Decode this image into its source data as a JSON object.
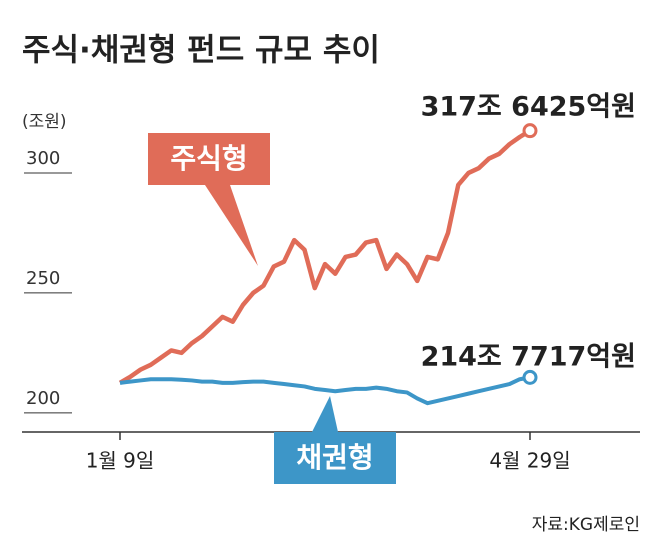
{
  "chart_data": {
    "type": "line",
    "title": "주식·채권형 펀드 규모 추이",
    "y_unit": "(조원)",
    "source": "자료:KG제로인",
    "categories": [
      "1월 9일",
      null,
      null,
      null,
      null,
      null,
      null,
      null,
      null,
      null,
      null,
      null,
      null,
      null,
      null,
      null,
      null,
      null,
      null,
      null,
      null,
      null,
      null,
      null,
      null,
      null,
      null,
      null,
      null,
      null,
      null,
      null,
      null,
      null,
      null,
      null,
      null,
      null,
      null,
      null,
      "4월 29일"
    ],
    "series": [
      {
        "name": "주식형",
        "color": "#e06c58",
        "end_label": "317조 6425억원",
        "values": [
          212.5,
          215,
          218,
          220,
          223,
          226,
          225,
          229,
          232,
          236,
          240,
          238,
          245,
          250,
          253,
          261,
          263,
          272,
          268,
          252,
          262,
          258,
          265,
          266,
          271,
          272,
          260,
          266,
          262,
          255,
          265,
          264,
          275,
          295,
          300,
          302,
          306,
          308,
          312,
          315,
          317.6425
        ]
      },
      {
        "name": "채권형",
        "color": "#3d96c8",
        "end_label": "214조 7717억원",
        "values": [
          212.5,
          213,
          213.5,
          214,
          214,
          214,
          213.8,
          213.5,
          213,
          213,
          212.5,
          212.5,
          212.8,
          213,
          213,
          212.5,
          212,
          211.5,
          211,
          210,
          209.5,
          209,
          209.5,
          210,
          210,
          210.5,
          210,
          209,
          208.5,
          206,
          204,
          205,
          206,
          207,
          208,
          209,
          210,
          211,
          212,
          214,
          214.7717
        ]
      }
    ],
    "ylim": [
      192,
      320
    ],
    "yticks": [
      200,
      250,
      300
    ]
  }
}
